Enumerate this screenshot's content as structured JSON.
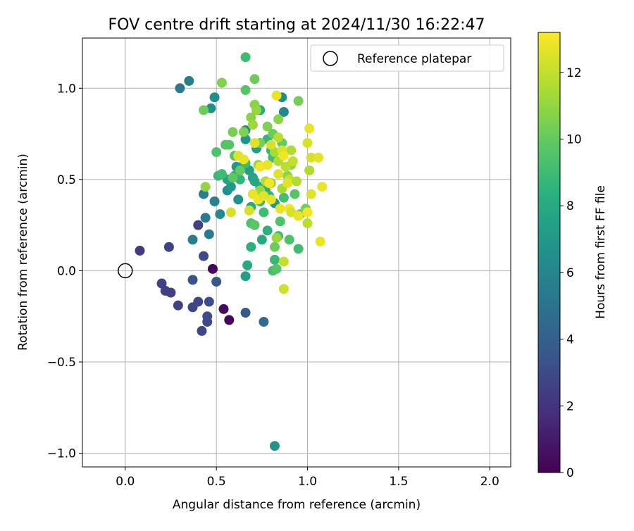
{
  "chart_data": {
    "type": "scatter",
    "title": "FOV centre drift starting at 2024/11/30 16:22:47",
    "xlabel": "Angular distance from reference (arcmin)",
    "ylabel": "Rotation from reference (arcmin)",
    "xlim": [
      -0.235,
      2.115
    ],
    "ylim": [
      -1.075,
      1.275
    ],
    "x_ticks": [
      0.0,
      0.5,
      1.0,
      1.5,
      2.0
    ],
    "x_tick_labels": [
      "0.0",
      "0.5",
      "1.0",
      "1.5",
      "2.0"
    ],
    "y_ticks": [
      -1.0,
      -0.5,
      0.0,
      0.5,
      1.0
    ],
    "y_tick_labels": [
      "−1.0",
      "−0.5",
      "0.0",
      "0.5",
      "1.0"
    ],
    "grid": true,
    "legend": {
      "placement": "top-right",
      "entries": [
        "Reference platepar"
      ]
    },
    "colorbar": {
      "label": "Hours from first FF file",
      "range": [
        0,
        13.2
      ],
      "ticks": [
        0,
        2,
        4,
        6,
        8,
        10,
        12
      ],
      "tick_labels": [
        "0",
        "2",
        "4",
        "6",
        "8",
        "10",
        "12"
      ],
      "colormap": "viridis"
    },
    "reference_point": {
      "x": 0.0,
      "y": 0.0,
      "name": "Reference platepar"
    },
    "series": [
      {
        "values": [
          [
            0.48,
            0.01,
            0.3
          ],
          [
            0.54,
            -0.21,
            0.4
          ],
          [
            0.57,
            -0.27,
            0.2
          ],
          [
            0.08,
            0.11,
            2.3
          ],
          [
            0.2,
            -0.07,
            2.5
          ],
          [
            0.22,
            -0.11,
            2.5
          ],
          [
            0.25,
            -0.12,
            2.5
          ],
          [
            0.24,
            0.13,
            2.6
          ],
          [
            0.29,
            -0.19,
            2.6
          ],
          [
            0.37,
            -0.2,
            2.7
          ],
          [
            0.4,
            -0.17,
            2.8
          ],
          [
            0.42,
            -0.33,
            2.8
          ],
          [
            0.45,
            -0.28,
            2.9
          ],
          [
            0.45,
            -0.25,
            3.0
          ],
          [
            0.46,
            -0.17,
            3.0
          ],
          [
            0.4,
            0.25,
            2.5
          ],
          [
            0.43,
            0.08,
            3.0
          ],
          [
            0.37,
            -0.05,
            3.4
          ],
          [
            0.5,
            -0.06,
            3.6
          ],
          [
            0.66,
            -0.23,
            3.6
          ],
          [
            0.76,
            -0.28,
            4.6
          ],
          [
            0.44,
            0.29,
            5.3
          ],
          [
            0.46,
            0.2,
            5.6
          ],
          [
            0.37,
            0.17,
            5.6
          ],
          [
            0.43,
            0.42,
            5.7
          ],
          [
            0.49,
            0.38,
            5.8
          ],
          [
            0.52,
            0.31,
            6.3
          ],
          [
            0.3,
            1.0,
            5.3
          ],
          [
            0.35,
            1.04,
            5.6
          ],
          [
            0.47,
            0.89,
            6.6
          ],
          [
            0.49,
            0.95,
            6.4
          ],
          [
            0.87,
            0.87,
            6.0
          ],
          [
            0.86,
            0.95,
            6.4
          ],
          [
            0.56,
            0.44,
            6.5
          ],
          [
            0.58,
            0.46,
            7.0
          ],
          [
            0.62,
            0.39,
            6.6
          ],
          [
            0.66,
            0.77,
            6.2
          ],
          [
            0.66,
            0.72,
            6.8
          ],
          [
            0.61,
            0.57,
            7.0
          ],
          [
            0.65,
            0.58,
            7.2
          ],
          [
            0.68,
            0.55,
            7.4
          ],
          [
            0.7,
            0.51,
            7.6
          ],
          [
            0.71,
            0.49,
            7.8
          ],
          [
            0.74,
            0.46,
            8.0
          ],
          [
            0.77,
            0.44,
            8.2
          ],
          [
            0.79,
            0.41,
            8.6
          ],
          [
            0.82,
            0.37,
            7.0
          ],
          [
            0.66,
            -0.03,
            7.4
          ],
          [
            0.67,
            0.03,
            8.0
          ],
          [
            0.69,
            0.13,
            8.4
          ],
          [
            0.75,
            0.17,
            8.0
          ],
          [
            0.78,
            0.22,
            8.4
          ],
          [
            0.82,
            -0.96,
            6.8
          ],
          [
            0.56,
            0.5,
            7.6
          ],
          [
            0.6,
            0.52,
            8.0
          ],
          [
            0.63,
            0.5,
            8.6
          ],
          [
            0.69,
            0.35,
            8.2
          ],
          [
            0.7,
            0.42,
            8.4
          ],
          [
            0.74,
            0.38,
            8.8
          ],
          [
            0.76,
            0.32,
            9.0
          ],
          [
            0.72,
            0.67,
            7.4
          ],
          [
            0.74,
            0.88,
            8.2
          ],
          [
            0.78,
            0.72,
            8.6
          ],
          [
            0.8,
            0.66,
            8.8
          ],
          [
            0.81,
            0.62,
            9.0
          ],
          [
            0.82,
            0.06,
            8.8
          ],
          [
            0.81,
            0.0,
            9.2
          ],
          [
            0.83,
            0.01,
            9.6
          ],
          [
            0.82,
            0.13,
            10.2
          ],
          [
            0.84,
            0.19,
            9.0
          ],
          [
            0.85,
            0.27,
            9.4
          ],
          [
            0.87,
            0.4,
            9.2
          ],
          [
            0.9,
            0.17,
            9.4
          ],
          [
            0.93,
            0.42,
            9.6
          ],
          [
            0.95,
            0.12,
            9.0
          ],
          [
            0.96,
            0.31,
            9.8
          ],
          [
            0.99,
            0.34,
            10.4
          ],
          [
            0.51,
            0.52,
            8.8
          ],
          [
            0.53,
            0.53,
            9.0
          ],
          [
            0.55,
            0.69,
            9.6
          ],
          [
            0.57,
            0.69,
            9.6
          ],
          [
            0.5,
            0.65,
            9.4
          ],
          [
            0.59,
            0.51,
            9.8
          ],
          [
            0.6,
            0.63,
            9.6
          ],
          [
            0.63,
            0.55,
            10.0
          ],
          [
            0.66,
            0.59,
            9.0
          ],
          [
            0.69,
            0.26,
            9.4
          ],
          [
            0.71,
            0.25,
            9.8
          ],
          [
            0.66,
            1.17,
            9.0
          ],
          [
            0.66,
            0.99,
            9.6
          ],
          [
            0.71,
            1.05,
            10.2
          ],
          [
            0.53,
            1.03,
            10.6
          ],
          [
            0.43,
            0.88,
            10.2
          ],
          [
            0.44,
            0.46,
            11.0
          ],
          [
            0.59,
            0.76,
            10.4
          ],
          [
            0.65,
            0.76,
            10.6
          ],
          [
            0.69,
            0.84,
            10.8
          ],
          [
            0.71,
            0.91,
            10.8
          ],
          [
            0.72,
            0.88,
            11.0
          ],
          [
            0.74,
            0.7,
            10.4
          ],
          [
            0.78,
            0.79,
            10.6
          ],
          [
            0.81,
            0.75,
            10.2
          ],
          [
            0.84,
            0.83,
            10.8
          ],
          [
            0.86,
            0.7,
            10.0
          ],
          [
            0.87,
            0.64,
            10.4
          ],
          [
            0.89,
            0.52,
            10.8
          ],
          [
            0.91,
            0.58,
            11.0
          ],
          [
            0.95,
            0.93,
            10.4
          ],
          [
            0.7,
            0.8,
            11.2
          ],
          [
            0.73,
            0.58,
            11.0
          ],
          [
            0.74,
            0.44,
            11.2
          ],
          [
            0.77,
            0.49,
            11.6
          ],
          [
            0.8,
            0.48,
            11.0
          ],
          [
            0.82,
            0.65,
            11.4
          ],
          [
            0.83,
            0.18,
            11.2
          ],
          [
            0.84,
            0.6,
            11.6
          ],
          [
            0.84,
            0.73,
            11.8
          ],
          [
            0.86,
            0.45,
            11.4
          ],
          [
            0.87,
            0.05,
            12.0
          ],
          [
            0.87,
            -0.1,
            12.2
          ],
          [
            0.88,
            0.57,
            11.8
          ],
          [
            0.9,
            0.5,
            12.0
          ],
          [
            0.91,
            0.66,
            11.6
          ],
          [
            0.92,
            0.6,
            12.0
          ],
          [
            0.94,
            0.49,
            11.6
          ],
          [
            0.58,
            0.32,
            12.4
          ],
          [
            0.62,
            0.63,
            12.6
          ],
          [
            0.65,
            0.61,
            12.8
          ],
          [
            0.68,
            0.33,
            12.4
          ],
          [
            0.7,
            0.42,
            12.8
          ],
          [
            0.71,
            0.7,
            12.6
          ],
          [
            0.73,
            0.39,
            12.9
          ],
          [
            0.74,
            0.57,
            13.0
          ],
          [
            0.76,
            0.41,
            12.6
          ],
          [
            0.78,
            0.58,
            12.8
          ],
          [
            0.79,
            0.48,
            13.0
          ],
          [
            0.8,
            0.39,
            12.7
          ],
          [
            0.8,
            0.69,
            12.4
          ],
          [
            0.84,
            0.53,
            12.6
          ],
          [
            0.85,
            0.34,
            12.8
          ],
          [
            0.86,
            0.66,
            12.5
          ],
          [
            0.87,
            0.63,
            13.0
          ],
          [
            0.89,
            0.48,
            12.6
          ],
          [
            0.9,
            0.34,
            13.0
          ],
          [
            0.91,
            0.32,
            12.4
          ],
          [
            0.95,
            0.3,
            12.8
          ],
          [
            1.0,
            0.32,
            13.0
          ],
          [
            1.0,
            0.7,
            12.4
          ],
          [
            1.01,
            0.55,
            11.6
          ],
          [
            1.01,
            0.78,
            12.8
          ],
          [
            1.02,
            0.42,
            12.6
          ],
          [
            1.02,
            0.62,
            12.4
          ],
          [
            1.06,
            0.62,
            12.6
          ],
          [
            1.07,
            0.16,
            12.8
          ],
          [
            1.08,
            0.46,
            12.8
          ],
          [
            1.0,
            0.26,
            11.8
          ],
          [
            0.83,
            0.96,
            12.8
          ]
        ]
      }
    ]
  }
}
